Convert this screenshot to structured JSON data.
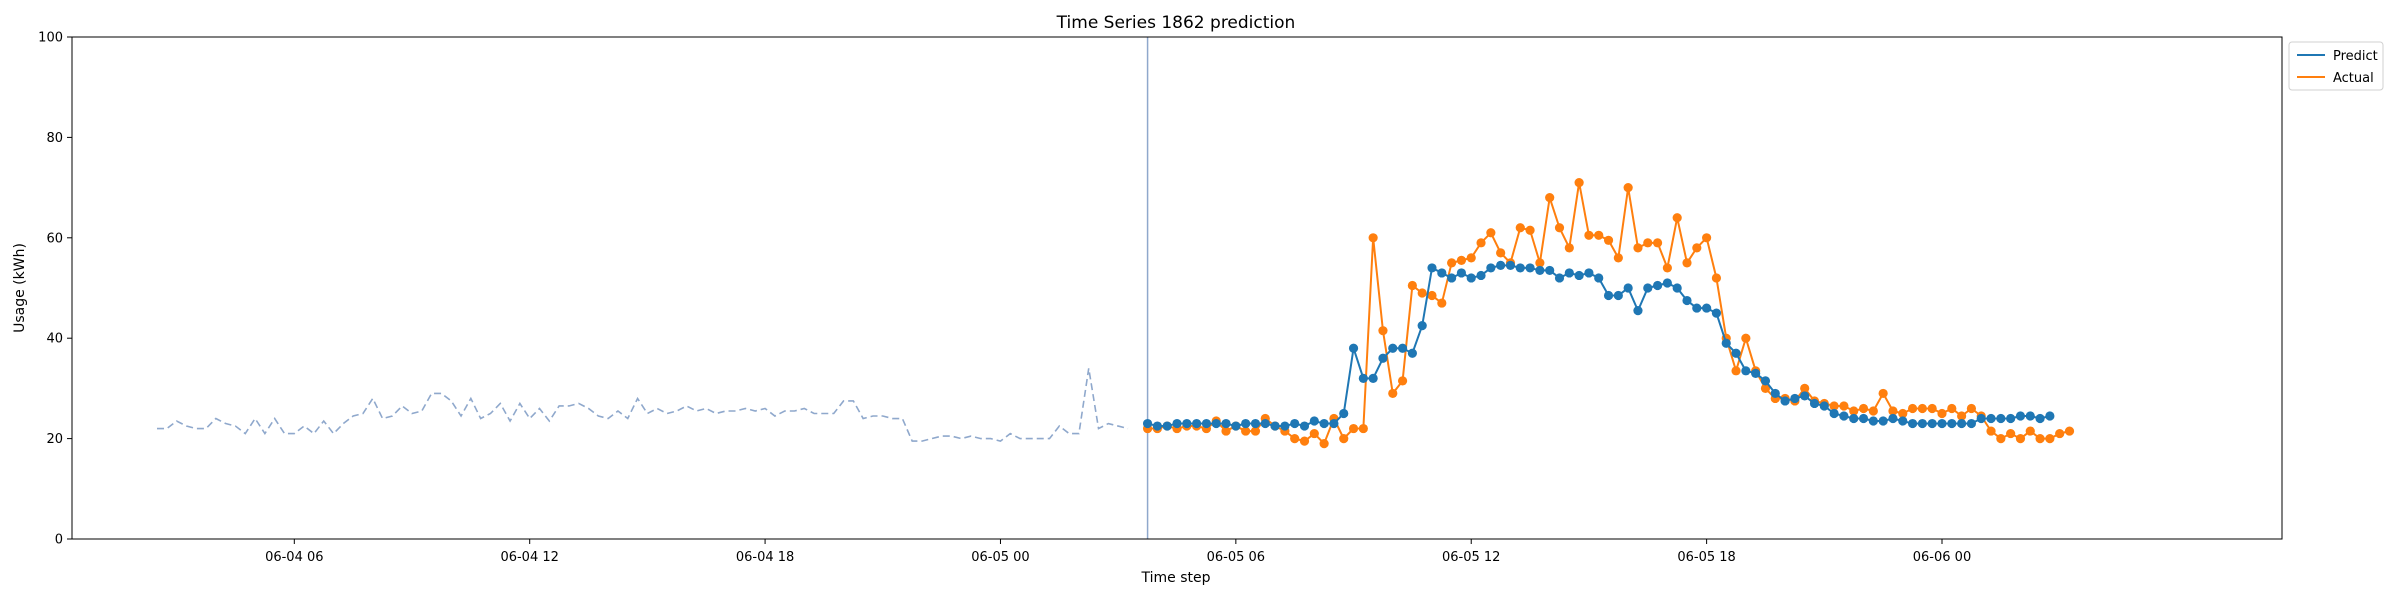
{
  "chart_data": {
    "type": "line",
    "title": "Time Series 1862 prediction",
    "xlabel": "Time step",
    "ylabel": "Usage (kWh)",
    "ylim": [
      0,
      100
    ],
    "xlim": [
      "2018-06-04 00:20",
      "2018-06-06 08:40"
    ],
    "yticks": [
      0,
      20,
      40,
      60,
      80,
      100
    ],
    "xticks": [
      {
        "t": "2018-06-04 06:00",
        "label": "06-04 06"
      },
      {
        "t": "2018-06-04 12:00",
        "label": "06-04 12"
      },
      {
        "t": "2018-06-04 18:00",
        "label": "06-04 18"
      },
      {
        "t": "2018-06-05 00:00",
        "label": "06-05 00"
      },
      {
        "t": "2018-06-05 06:00",
        "label": "06-05 06"
      },
      {
        "t": "2018-06-05 12:00",
        "label": "06-05 12"
      },
      {
        "t": "2018-06-05 18:00",
        "label": "06-05 18"
      },
      {
        "t": "2018-06-06 00:00",
        "label": "06-06 00"
      }
    ],
    "grid": false,
    "legend_position": "top-right, outside plot",
    "forecast_start": "2018-06-05 03:45",
    "colors": {
      "predict": "#1f77b4",
      "actual": "#ff7f0e",
      "history": "#8fa8cc",
      "divider": "#8fa8cc"
    },
    "history": {
      "start": "2018-06-04 02:30",
      "step_minutes": 15,
      "style": "dashed",
      "values": [
        22,
        22,
        23.5,
        22.5,
        22,
        22,
        24,
        23,
        22.5,
        21,
        24,
        21,
        24,
        21,
        21,
        22.5,
        21,
        23.5,
        21,
        23,
        24.5,
        25,
        28,
        24,
        24.5,
        26.5,
        25,
        25.5,
        29,
        29,
        27.5,
        24.5,
        28,
        24,
        25,
        27,
        23.5,
        27,
        24,
        26,
        23.5,
        26.5,
        26.5,
        27,
        26,
        24.5,
        24,
        25.5,
        24,
        28,
        25,
        26,
        25,
        25.5,
        26.5,
        25.5,
        26,
        25,
        25.5,
        25.5,
        26,
        25.5,
        26,
        24.5,
        25.5,
        25.5,
        26,
        25,
        25,
        25,
        27.5,
        27.5,
        24,
        24.5,
        24.5,
        24,
        24,
        19.5,
        19.5,
        20,
        20.5,
        20.5,
        20,
        20.5,
        20,
        20,
        19.5,
        21,
        20,
        20,
        20,
        20,
        22.5,
        21,
        21,
        34,
        22,
        23,
        22.5,
        22
      ]
    },
    "series": [
      {
        "name": "Predict",
        "start": "2018-06-05 03:45",
        "step_minutes": 15,
        "marker": "circle",
        "values": [
          23,
          22.5,
          22.5,
          23,
          23,
          23,
          23,
          23,
          23,
          22.5,
          23,
          23,
          23,
          22.5,
          22.5,
          23,
          22.5,
          23.5,
          23,
          23,
          25,
          38,
          32,
          32,
          36,
          38,
          38,
          37,
          42.5,
          54,
          53,
          52,
          53,
          52,
          52.5,
          54,
          54.5,
          54.5,
          54,
          54,
          53.5,
          53.5,
          52,
          53,
          52.5,
          53,
          52,
          48.5,
          48.5,
          50,
          45.5,
          50,
          50.5,
          51,
          50,
          47.5,
          46,
          46,
          45,
          39,
          37,
          33.5,
          33,
          31.5,
          29,
          27.5,
          28,
          28.5,
          27,
          26.5,
          25,
          24.5,
          24,
          24,
          23.5,
          23.5,
          24,
          23.5,
          23,
          23,
          23,
          23,
          23,
          23,
          23,
          24,
          24,
          24,
          24,
          24.5,
          24.5,
          24,
          24.5
        ]
      },
      {
        "name": "Actual",
        "start": "2018-06-05 03:45",
        "step_minutes": 15,
        "marker": "circle",
        "values": [
          22,
          22,
          22.5,
          22,
          22.5,
          22.5,
          22,
          23.5,
          21.5,
          22.5,
          21.5,
          21.5,
          24,
          22.5,
          21.5,
          20,
          19.5,
          21,
          19,
          24,
          20,
          22,
          22,
          60,
          41.5,
          29,
          31.5,
          50.5,
          49,
          48.5,
          47,
          55,
          55.5,
          56,
          59,
          61,
          57,
          55,
          62,
          61.5,
          55,
          68,
          62,
          58,
          71,
          60.5,
          60.5,
          59.5,
          56,
          70,
          58,
          59,
          59,
          54,
          64,
          55,
          58,
          60,
          52,
          40,
          33.5,
          40,
          33.5,
          30,
          28,
          28,
          27.5,
          30,
          27.5,
          27,
          26.5,
          26.5,
          25.5,
          26,
          25.5,
          29,
          25.5,
          25,
          26,
          26,
          26,
          25,
          26,
          24.5,
          26,
          24.5,
          21.5,
          20,
          21,
          20,
          21.5,
          20,
          20,
          21,
          21.5
        ]
      }
    ]
  }
}
